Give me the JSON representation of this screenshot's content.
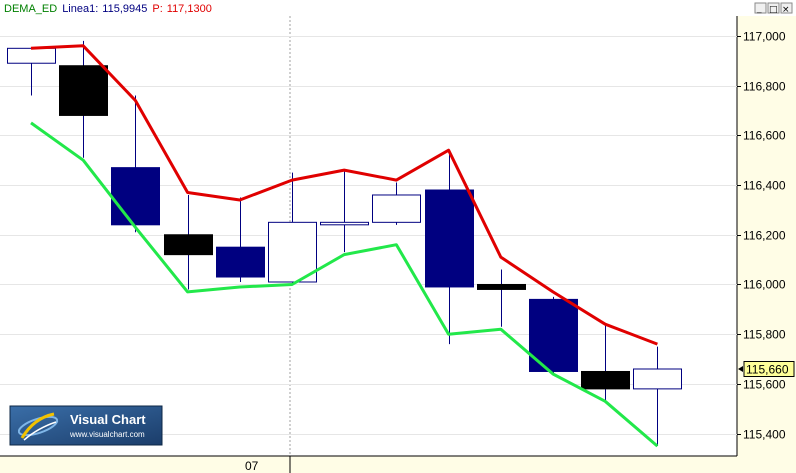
{
  "header": {
    "indicator": "DEMA_ED",
    "series_label": "Linea1:",
    "series_value": "115,9945",
    "price_label": "P:",
    "price_value": "117,1300"
  },
  "window_controls": {
    "minimize": "_",
    "maximize": "□",
    "close": "×"
  },
  "branding": {
    "name": "Visual Chart",
    "url": "www.visualchart.com"
  },
  "colors": {
    "bull_fill": "#ffffff",
    "bear_black": "#000000",
    "bear_navy": "#000080",
    "wick": "#000080",
    "line_red": "#e00000",
    "line_green": "#22e84a",
    "axis_bg": "#fffde6",
    "price_tag_bg": "#ffff99"
  },
  "chart_data": {
    "type": "candlestick",
    "ylim": [
      115.31,
      117.08
    ],
    "yticks": [
      "117,000",
      "116,800",
      "116,600",
      "116,400",
      "116,200",
      "116,000",
      "115,800",
      "115,600",
      "115,400"
    ],
    "ytick_values": [
      117.0,
      116.8,
      116.6,
      116.4,
      116.2,
      116.0,
      115.8,
      115.6,
      115.4
    ],
    "xlabel_marker": "07",
    "xlabel_marker_index": 5,
    "last_price_tag": "115,660",
    "last_price_value": 115.66,
    "candles": [
      {
        "open": 116.89,
        "high": 116.95,
        "low": 116.76,
        "close": 116.95,
        "color": "white"
      },
      {
        "open": 116.88,
        "high": 116.98,
        "low": 116.51,
        "close": 116.68,
        "color": "black"
      },
      {
        "open": 116.47,
        "high": 116.76,
        "low": 116.21,
        "close": 116.24,
        "color": "navy"
      },
      {
        "open": 116.2,
        "high": 116.36,
        "low": 115.98,
        "close": 116.12,
        "color": "black"
      },
      {
        "open": 116.03,
        "high": 116.35,
        "low": 116.01,
        "close": 116.15,
        "color": "navy"
      },
      {
        "open": 116.01,
        "high": 116.45,
        "low": 116.0,
        "close": 116.25,
        "color": "white"
      },
      {
        "open": 116.24,
        "high": 116.46,
        "low": 116.13,
        "close": 116.25,
        "color": "white"
      },
      {
        "open": 116.25,
        "high": 116.41,
        "low": 116.24,
        "close": 116.36,
        "color": "white"
      },
      {
        "open": 116.38,
        "high": 116.53,
        "low": 115.76,
        "close": 115.99,
        "color": "navy"
      },
      {
        "open": 116.0,
        "high": 116.06,
        "low": 115.83,
        "close": 115.98,
        "color": "black"
      },
      {
        "open": 115.94,
        "high": 115.95,
        "low": 115.64,
        "close": 115.65,
        "color": "navy"
      },
      {
        "open": 115.65,
        "high": 115.84,
        "low": 115.53,
        "close": 115.58,
        "color": "black"
      },
      {
        "open": 115.58,
        "high": 115.75,
        "low": 115.35,
        "close": 115.66,
        "color": "white"
      }
    ],
    "series": [
      {
        "values": [
          116.95,
          116.96,
          116.74,
          116.37,
          116.34,
          116.42,
          116.46,
          116.42,
          116.54,
          116.11,
          115.97,
          115.84,
          115.76
        ]
      },
      {
        "values": [
          116.65,
          116.5,
          116.23,
          115.97,
          115.99,
          116.0,
          116.12,
          116.16,
          115.8,
          115.82,
          115.64,
          115.53,
          115.35
        ]
      }
    ]
  }
}
